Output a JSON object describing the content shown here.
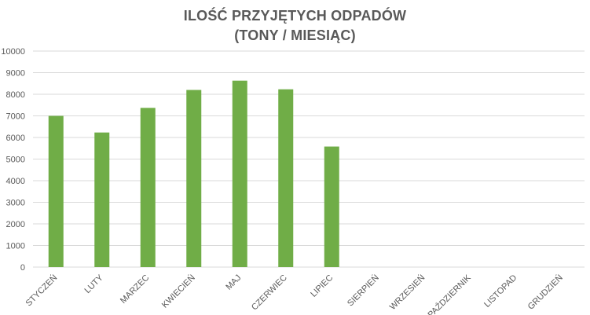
{
  "chart_data": {
    "type": "bar",
    "title": "ILOŚĆ PRZYJĘTYCH ODPADÓW",
    "subtitle": "(TONY / MIESIĄC)",
    "categories": [
      "STYCZEŃ",
      "LUTY",
      "MARZEC",
      "KWIECIEŃ",
      "MAJ",
      "CZERWIEC",
      "LIPIEC",
      "SIERPIEŃ",
      "WRZESIEŃ",
      "PAŹDZIERNIK",
      "LISTOPAD",
      "GRUDZIEŃ"
    ],
    "values": [
      7000,
      6230,
      7370,
      8200,
      8630,
      8230,
      5580,
      null,
      null,
      null,
      null,
      null
    ],
    "ylim": [
      0,
      10000
    ],
    "yticks": [
      "0",
      "1000",
      "2000",
      "3000",
      "4000",
      "5000",
      "6000",
      "7000",
      "8000",
      "9000",
      "10000"
    ],
    "grid": true,
    "legend": "none",
    "bar_color": "#70AD47",
    "grid_color": "#D9D9D9",
    "text_color": "#595959"
  }
}
